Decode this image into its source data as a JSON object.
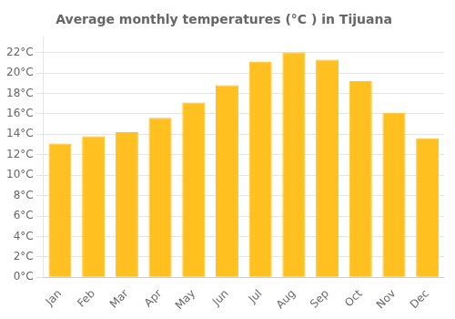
{
  "chart_data": {
    "type": "bar",
    "title": "Average monthly temperatures (°C ) in Tijuana",
    "categories": [
      "Jan",
      "Feb",
      "Mar",
      "Apr",
      "May",
      "Jun",
      "Jul",
      "Aug",
      "Sep",
      "Oct",
      "Nov",
      "Dec"
    ],
    "values": [
      13.1,
      13.8,
      14.2,
      15.6,
      17.1,
      18.8,
      21.1,
      22.0,
      21.3,
      19.2,
      16.1,
      13.6
    ],
    "color": "#FFC020",
    "ylim": [
      0,
      23.5
    ],
    "yticks": [
      {
        "value": 0,
        "label": "0°C"
      },
      {
        "value": 2,
        "label": "2°C"
      },
      {
        "value": 4,
        "label": "4°C"
      },
      {
        "value": 6,
        "label": "6°C"
      },
      {
        "value": 8,
        "label": "8°C"
      },
      {
        "value": 10,
        "label": "10°C"
      },
      {
        "value": 12,
        "label": "12°C"
      },
      {
        "value": 14,
        "label": "14°C"
      },
      {
        "value": 16,
        "label": "16°C"
      },
      {
        "value": 18,
        "label": "18°C"
      },
      {
        "value": 20,
        "label": "20°C"
      },
      {
        "value": 22,
        "label": "22°C"
      }
    ],
    "grid": true
  }
}
